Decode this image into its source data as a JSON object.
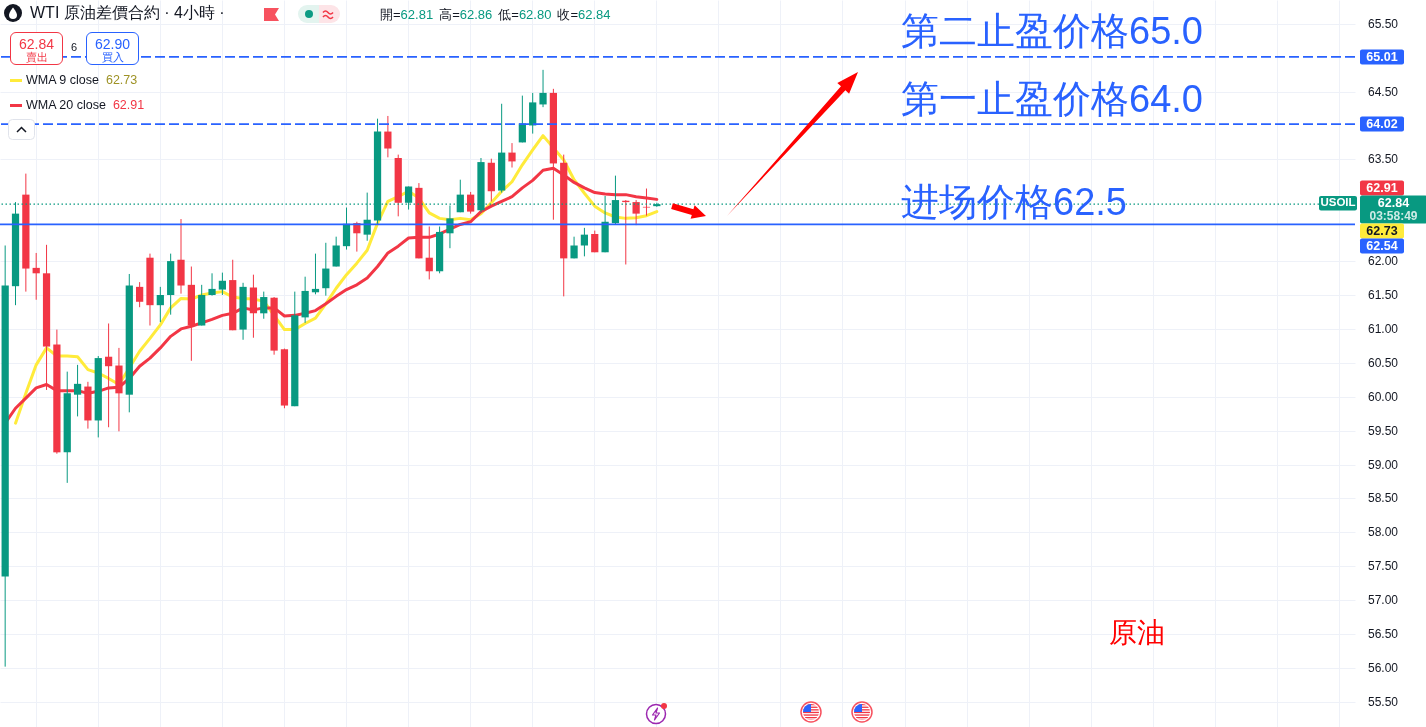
{
  "chart_data": {
    "type": "candlestick",
    "title": "WTI 原油差價合約 · 4小時 ·",
    "subtitle": "開=62.81 高=62.86 低=62.80 收=62.84",
    "categories": [
      null,
      null,
      null,
      null,
      null,
      null,
      null,
      null,
      null,
      null,
      null,
      null,
      null,
      null,
      null,
      null,
      null,
      null,
      null,
      null,
      null,
      null,
      null,
      null,
      null,
      null,
      null,
      null,
      null,
      null,
      null,
      null,
      null,
      null,
      null,
      null,
      null,
      null,
      null,
      null,
      null,
      null,
      null,
      null,
      null,
      null,
      null,
      null,
      null,
      null,
      null,
      null,
      null,
      null,
      null,
      null,
      null,
      null,
      null,
      null,
      null,
      null,
      null,
      null,
      null,
      null,
      null,
      null,
      null,
      null,
      null,
      null,
      null,
      null,
      null,
      null,
      null,
      null,
      null,
      null,
      null,
      null,
      null,
      null,
      null,
      null,
      null,
      null,
      null,
      null,
      null,
      null,
      null,
      null,
      null,
      null,
      null,
      null,
      null,
      null,
      null,
      null,
      null,
      null,
      null,
      null,
      null,
      null,
      null,
      null,
      null,
      null,
      null,
      null,
      null,
      null,
      null,
      null,
      null,
      null,
      null,
      null,
      null,
      null,
      null,
      null,
      null,
      null,
      null,
      null,
      null
    ],
    "ohlc": [
      [
        57.35,
        62.23,
        56.02,
        61.64
      ],
      [
        61.63,
        62.87,
        61.35,
        62.7
      ],
      [
        62.98,
        63.29,
        61.55,
        61.89
      ],
      [
        61.9,
        62.12,
        61.43,
        61.82
      ],
      [
        61.82,
        62.24,
        60.1,
        60.74
      ],
      [
        60.77,
        60.99,
        59.16,
        59.18
      ],
      [
        59.18,
        60.37,
        58.73,
        60.05
      ],
      [
        60.03,
        60.47,
        59.71,
        60.19
      ],
      [
        60.15,
        60.22,
        59.53,
        59.65
      ],
      [
        59.65,
        60.6,
        59.4,
        60.57
      ],
      [
        60.59,
        61.08,
        59.55,
        60.45
      ],
      [
        60.46,
        60.72,
        59.49,
        60.05
      ],
      [
        60.03,
        61.81,
        59.77,
        61.64
      ],
      [
        61.62,
        61.69,
        61.32,
        61.4
      ],
      [
        62.05,
        62.11,
        61.05,
        61.35
      ],
      [
        61.35,
        61.62,
        61.1,
        61.5
      ],
      [
        61.5,
        62.11,
        61.21,
        62.0
      ],
      [
        62.02,
        62.62,
        61.52,
        61.64
      ],
      [
        61.65,
        61.92,
        60.53,
        61.05
      ],
      [
        61.05,
        61.65,
        61.05,
        61.5
      ],
      [
        61.5,
        61.82,
        61.49,
        61.59
      ],
      [
        61.58,
        61.83,
        61.5,
        61.71
      ],
      [
        61.72,
        62.02,
        60.98,
        60.98
      ],
      [
        60.99,
        61.68,
        60.84,
        61.62
      ],
      [
        61.61,
        61.8,
        60.87,
        61.23
      ],
      [
        61.23,
        61.55,
        61.15,
        61.47
      ],
      [
        61.46,
        61.47,
        60.62,
        60.68
      ],
      [
        60.7,
        60.71,
        59.83,
        59.87
      ],
      [
        59.86,
        61.55,
        59.86,
        61.2
      ],
      [
        61.17,
        61.77,
        61.09,
        61.56
      ],
      [
        61.54,
        62.11,
        61.51,
        61.59
      ],
      [
        61.6,
        62.27,
        61.49,
        61.89
      ],
      [
        61.92,
        62.36,
        61.92,
        62.23
      ],
      [
        62.22,
        62.79,
        62.17,
        62.55
      ],
      [
        62.56,
        62.58,
        62.14,
        62.41
      ],
      [
        62.39,
        63.01,
        62.3,
        62.61
      ],
      [
        62.6,
        64.1,
        62.54,
        63.91
      ],
      [
        63.91,
        64.14,
        63.53,
        63.66
      ],
      [
        63.52,
        63.57,
        62.66,
        62.86
      ],
      [
        62.86,
        63.1,
        62.76,
        63.1
      ],
      [
        63.08,
        63.15,
        62.04,
        62.04
      ],
      [
        62.05,
        62.51,
        61.73,
        61.85
      ],
      [
        61.85,
        62.51,
        61.82,
        62.43
      ],
      [
        62.41,
        62.82,
        62.19,
        62.63
      ],
      [
        62.72,
        63.2,
        62.72,
        62.98
      ],
      [
        62.98,
        63.02,
        62.7,
        62.73
      ],
      [
        62.75,
        63.52,
        62.72,
        63.46
      ],
      [
        63.45,
        63.51,
        62.88,
        63.03
      ],
      [
        63.04,
        64.32,
        63.01,
        63.6
      ],
      [
        63.6,
        63.74,
        63.38,
        63.47
      ],
      [
        63.75,
        64.44,
        63.75,
        64.03
      ],
      [
        64.0,
        64.48,
        63.88,
        64.34
      ],
      [
        64.31,
        64.82,
        64.27,
        64.48
      ],
      [
        64.48,
        64.54,
        62.61,
        63.44
      ],
      [
        63.45,
        63.57,
        61.48,
        62.04
      ],
      [
        62.04,
        62.36,
        62.04,
        62.23
      ],
      [
        62.23,
        62.49,
        62.07,
        62.39
      ],
      [
        62.4,
        62.45,
        62.13,
        62.13
      ],
      [
        62.13,
        62.96,
        62.13,
        62.58
      ],
      [
        62.56,
        63.26,
        62.54,
        62.9
      ],
      [
        62.89,
        62.9,
        61.95,
        62.87
      ],
      [
        62.87,
        62.9,
        62.53,
        62.7
      ],
      [
        62.8,
        63.07,
        62.67,
        62.79
      ],
      [
        62.81,
        62.86,
        62.8,
        62.84
      ],
      null,
      null,
      null,
      null,
      null,
      null,
      null,
      null,
      null,
      null,
      null,
      null,
      null,
      null,
      null,
      null,
      null,
      null,
      null,
      null,
      null,
      null,
      null,
      null,
      null,
      null,
      null,
      null,
      null,
      null,
      null,
      null,
      null,
      null,
      null,
      null,
      null,
      null,
      null,
      null,
      null,
      null,
      null,
      null,
      null,
      null,
      null,
      null,
      null,
      null,
      null,
      null,
      null,
      null,
      null,
      null,
      null,
      null,
      null,
      null,
      null,
      null,
      null,
      null,
      null,
      null,
      null
    ],
    "colors": [
      "#089981",
      "#089981",
      "#f23645",
      "#f23645",
      "#f23645",
      "#f23645",
      "#089981",
      "#089981",
      "#f23645",
      "#089981",
      "#f23645",
      "#f23645",
      "#089981",
      "#f23645",
      "#f23645",
      "#089981",
      "#089981",
      "#f23645",
      "#f23645",
      "#089981",
      "#089981",
      "#089981",
      "#f23645",
      "#089981",
      "#f23645",
      "#089981",
      "#f23645",
      "#f23645",
      "#089981",
      "#089981",
      "#089981",
      "#089981",
      "#089981",
      "#089981",
      "#f23645",
      "#089981",
      "#089981",
      "#f23645",
      "#f23645",
      "#089981",
      "#f23645",
      "#f23645",
      "#089981",
      "#089981",
      "#089981",
      "#f23645",
      "#089981",
      "#f23645",
      "#089981",
      "#f23645",
      "#089981",
      "#089981",
      "#089981",
      "#f23645",
      "#f23645",
      "#089981",
      "#089981",
      "#f23645",
      "#089981",
      "#089981",
      "#f23645",
      "#f23645",
      "#f23645",
      "#089981",
      null,
      null,
      null,
      null,
      null,
      null,
      null,
      null,
      null,
      null,
      null,
      null,
      null,
      null,
      null,
      null,
      null,
      null,
      null,
      null,
      null,
      null,
      null,
      null,
      null,
      null,
      null,
      null,
      null,
      null,
      null,
      null,
      null,
      null,
      null,
      null,
      null,
      null,
      null,
      null,
      null,
      null,
      null,
      null,
      null,
      null,
      null,
      null,
      null,
      null,
      null,
      null,
      null,
      null,
      null,
      null,
      null,
      null,
      null,
      null,
      null,
      null,
      null,
      null,
      null,
      null,
      null
    ],
    "series": [
      {
        "name": "WMA 9 close",
        "type": "line",
        "color": "#ffeb3b",
        "values": [
          null,
          59.61,
          60.05,
          60.47,
          60.72,
          60.6,
          60.6,
          60.59,
          60.4,
          60.35,
          60.27,
          60.18,
          null,
          60.67,
          60.86,
          61.06,
          61.31,
          61.45,
          61.44,
          61.5,
          61.53,
          61.55,
          61.47,
          61.45,
          61.44,
          61.41,
          null,
          60.99,
          60.99,
          61.08,
          61.16,
          61.37,
          61.6,
          61.8,
          61.97,
          62.16,
          62.56,
          62.88,
          62.95,
          63.03,
          62.93,
          62.71,
          62.63,
          62.61,
          62.63,
          62.61,
          62.7,
          62.86,
          63.03,
          63.17,
          63.42,
          63.64,
          63.85,
          null,
          63.49,
          63.2,
          63.0,
          62.81,
          62.71,
          62.65,
          62.63,
          62.64,
          62.67,
          62.73,
          null,
          null,
          null,
          null,
          null,
          null,
          null,
          null,
          null,
          null,
          null,
          null,
          null,
          null,
          null,
          null,
          null,
          null,
          null,
          null,
          null,
          null,
          null,
          null,
          null,
          null,
          null,
          null,
          null,
          null,
          null,
          null,
          null,
          null,
          null,
          null,
          null,
          null,
          null,
          null,
          null,
          null,
          null,
          null,
          null,
          null,
          null,
          null,
          null,
          null,
          null,
          null,
          null,
          null,
          null,
          null,
          null,
          null,
          null,
          null,
          null,
          null,
          null,
          null,
          null,
          null,
          null
        ]
      },
      {
        "name": "WMA 20 close",
        "type": "line",
        "color": "#f23645",
        "values": [
          59.61,
          59.83,
          59.98,
          60.13,
          60.18,
          60.09,
          60.09,
          60.09,
          60.05,
          60.08,
          60.13,
          60.14,
          60.27,
          60.45,
          60.57,
          60.72,
          60.89,
          61.0,
          61.04,
          61.09,
          61.14,
          61.2,
          61.23,
          61.31,
          61.28,
          61.31,
          61.31,
          61.19,
          61.2,
          61.23,
          61.27,
          61.37,
          61.48,
          61.58,
          61.65,
          61.75,
          61.92,
          62.12,
          62.22,
          62.34,
          62.35,
          62.35,
          62.4,
          62.47,
          62.54,
          62.58,
          62.73,
          62.81,
          62.88,
          62.95,
          63.08,
          63.19,
          63.34,
          63.37,
          63.27,
          63.16,
          63.08,
          63.01,
          62.99,
          62.98,
          62.98,
          62.95,
          62.93,
          62.91,
          null,
          null,
          null,
          null,
          null,
          null,
          null,
          null,
          null,
          null,
          null,
          null,
          null,
          null,
          null,
          null,
          null,
          null,
          null,
          null,
          null,
          null,
          null,
          null,
          null,
          null,
          null,
          null,
          null,
          null,
          null,
          null,
          null,
          null,
          null,
          null,
          null,
          null,
          null,
          null,
          null,
          null,
          null,
          null,
          null,
          null,
          null,
          null,
          null,
          null,
          null,
          null,
          null,
          null,
          null,
          null,
          null,
          null,
          null,
          null,
          null,
          null,
          null,
          null,
          null,
          null,
          null
        ]
      }
    ],
    "ylim": [
      55.13,
      65.85
    ],
    "yticks": [
      {
        "value": 55.5,
        "label": "55.50"
      },
      {
        "value": 56,
        "label": "56.00"
      },
      {
        "value": 56.5,
        "label": "56.50"
      },
      {
        "value": 57,
        "label": "57.00"
      },
      {
        "value": 57.5,
        "label": "57.50"
      },
      {
        "value": 58,
        "label": "58.00"
      },
      {
        "value": 58.5,
        "label": "58.50"
      },
      {
        "value": 59,
        "label": "59.00"
      },
      {
        "value": 59.5,
        "label": "59.50"
      },
      {
        "value": 60,
        "label": "60.00"
      },
      {
        "value": 60.5,
        "label": "60.50"
      },
      {
        "value": 61,
        "label": "61.00"
      },
      {
        "value": 61.5,
        "label": "61.50"
      },
      {
        "value": 62,
        "label": "62.00"
      },
      {
        "value": 63.5,
        "label": "63.50"
      },
      {
        "value": 64.5,
        "label": "64.50"
      },
      {
        "value": 65.5,
        "label": "65.50"
      }
    ],
    "ref_lines": [
      {
        "axis": "y",
        "value": 65.01,
        "label": "65.01",
        "color": "#2962ff",
        "line_style": "dashed"
      },
      {
        "axis": "y",
        "value": 64.02,
        "label": "64.02",
        "color": "#2962ff",
        "line_style": "dashed"
      },
      {
        "axis": "y",
        "value": 62.84,
        "label": "62.84",
        "color": "#089981",
        "line_style": "dotted"
      },
      {
        "axis": "y",
        "value": 62.54,
        "label": "62.54",
        "color": "#2962ff",
        "line_style": "solid"
      }
    ],
    "annotations": [
      "62.84",
      "賣出",
      "6",
      "62.90",
      "買入",
      "62.73",
      "62.91",
      "第二止盈价格65.0",
      "第一止盈价格64.0",
      "进场价格62.5",
      "USOIL",
      "03:58:49",
      "原油",
      "62.91",
      "62.73"
    ],
    "legend": "top left",
    "grid": true,
    "tick_labels": "y"
  }
}
